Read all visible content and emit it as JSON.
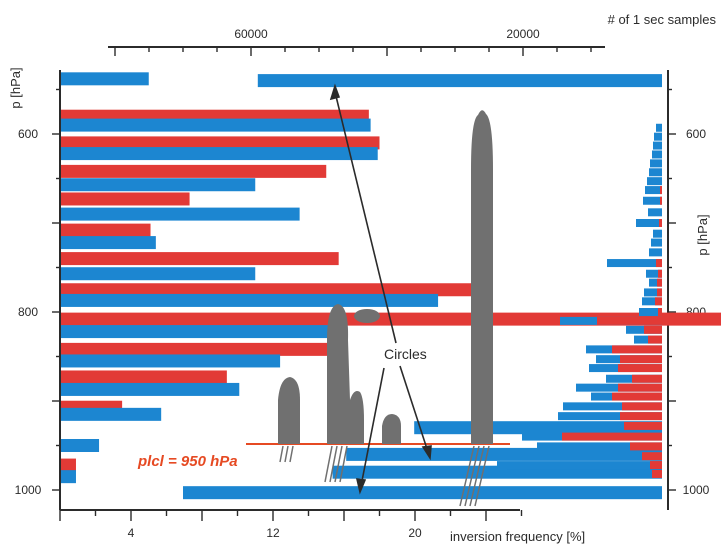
{
  "chart_data": {
    "type": "bar",
    "title": "",
    "colors": {
      "red": "#e23a36",
      "blue": "#1c86d1",
      "cloud": "#707070",
      "lcl_line": "#e64a23"
    },
    "top_axis": {
      "label": "# of 1 sec samples",
      "ticks": [
        "60000",
        "20000"
      ],
      "scale": "reversed"
    },
    "bottom_axis": {
      "label": "inversion frequency [%]",
      "ticks": [
        "4",
        "12",
        "20"
      ],
      "range": [
        0,
        28
      ]
    },
    "left_axis": {
      "label": "p [hPa]",
      "ticks": [
        "600",
        "800",
        "1000"
      ],
      "range": [
        550,
        1020
      ]
    },
    "right_axis": {
      "label": "p [hPa]",
      "ticks": [
        "600",
        "800",
        "1000"
      ]
    },
    "series": [
      {
        "color": "red",
        "axis": "bottom",
        "data": [
          {
            "p": 580,
            "v": 17.4
          },
          {
            "p": 610,
            "v": 18.0
          },
          {
            "p": 642,
            "v": 15.0
          },
          {
            "p": 673,
            "v": 7.3
          },
          {
            "p": 708,
            "v": 5.1
          },
          {
            "p": 740,
            "v": 15.7
          },
          {
            "p": 775,
            "v": 23.3
          },
          {
            "p": 808,
            "v": 42.7
          },
          {
            "p": 842,
            "v": 15.7
          },
          {
            "p": 873,
            "v": 9.4
          },
          {
            "p": 907,
            "v": 3.5
          },
          {
            "p": 972,
            "v": 0.9
          }
        ]
      },
      {
        "color": "blue",
        "axis": "bottom",
        "data": [
          {
            "p": 538,
            "v": 5.0
          },
          {
            "p": 590,
            "v": 17.5
          },
          {
            "p": 622,
            "v": 17.9
          },
          {
            "p": 657,
            "v": 11.0
          },
          {
            "p": 690,
            "v": 13.5
          },
          {
            "p": 722,
            "v": 5.4
          },
          {
            "p": 757,
            "v": 11.0
          },
          {
            "p": 787,
            "v": 21.3
          },
          {
            "p": 822,
            "v": 15.9
          },
          {
            "p": 855,
            "v": 12.4
          },
          {
            "p": 887,
            "v": 10.1
          },
          {
            "p": 915,
            "v": 5.7
          },
          {
            "p": 950,
            "v": 2.2
          },
          {
            "p": 985,
            "v": 0.9
          }
        ]
      },
      {
        "color": "blue",
        "axis": "top",
        "data": [
          {
            "p": 540,
            "v": 59000
          },
          {
            "p": 930,
            "v": 36000
          },
          {
            "p": 960,
            "v": 46000
          },
          {
            "p": 980,
            "v": 48000
          },
          {
            "p": 1003,
            "v": 70000
          }
        ]
      }
    ],
    "annotations": {
      "lcl_label": "plcl = 950 hPa",
      "circles_label": "Circles",
      "lcl_pressure": 950
    }
  }
}
